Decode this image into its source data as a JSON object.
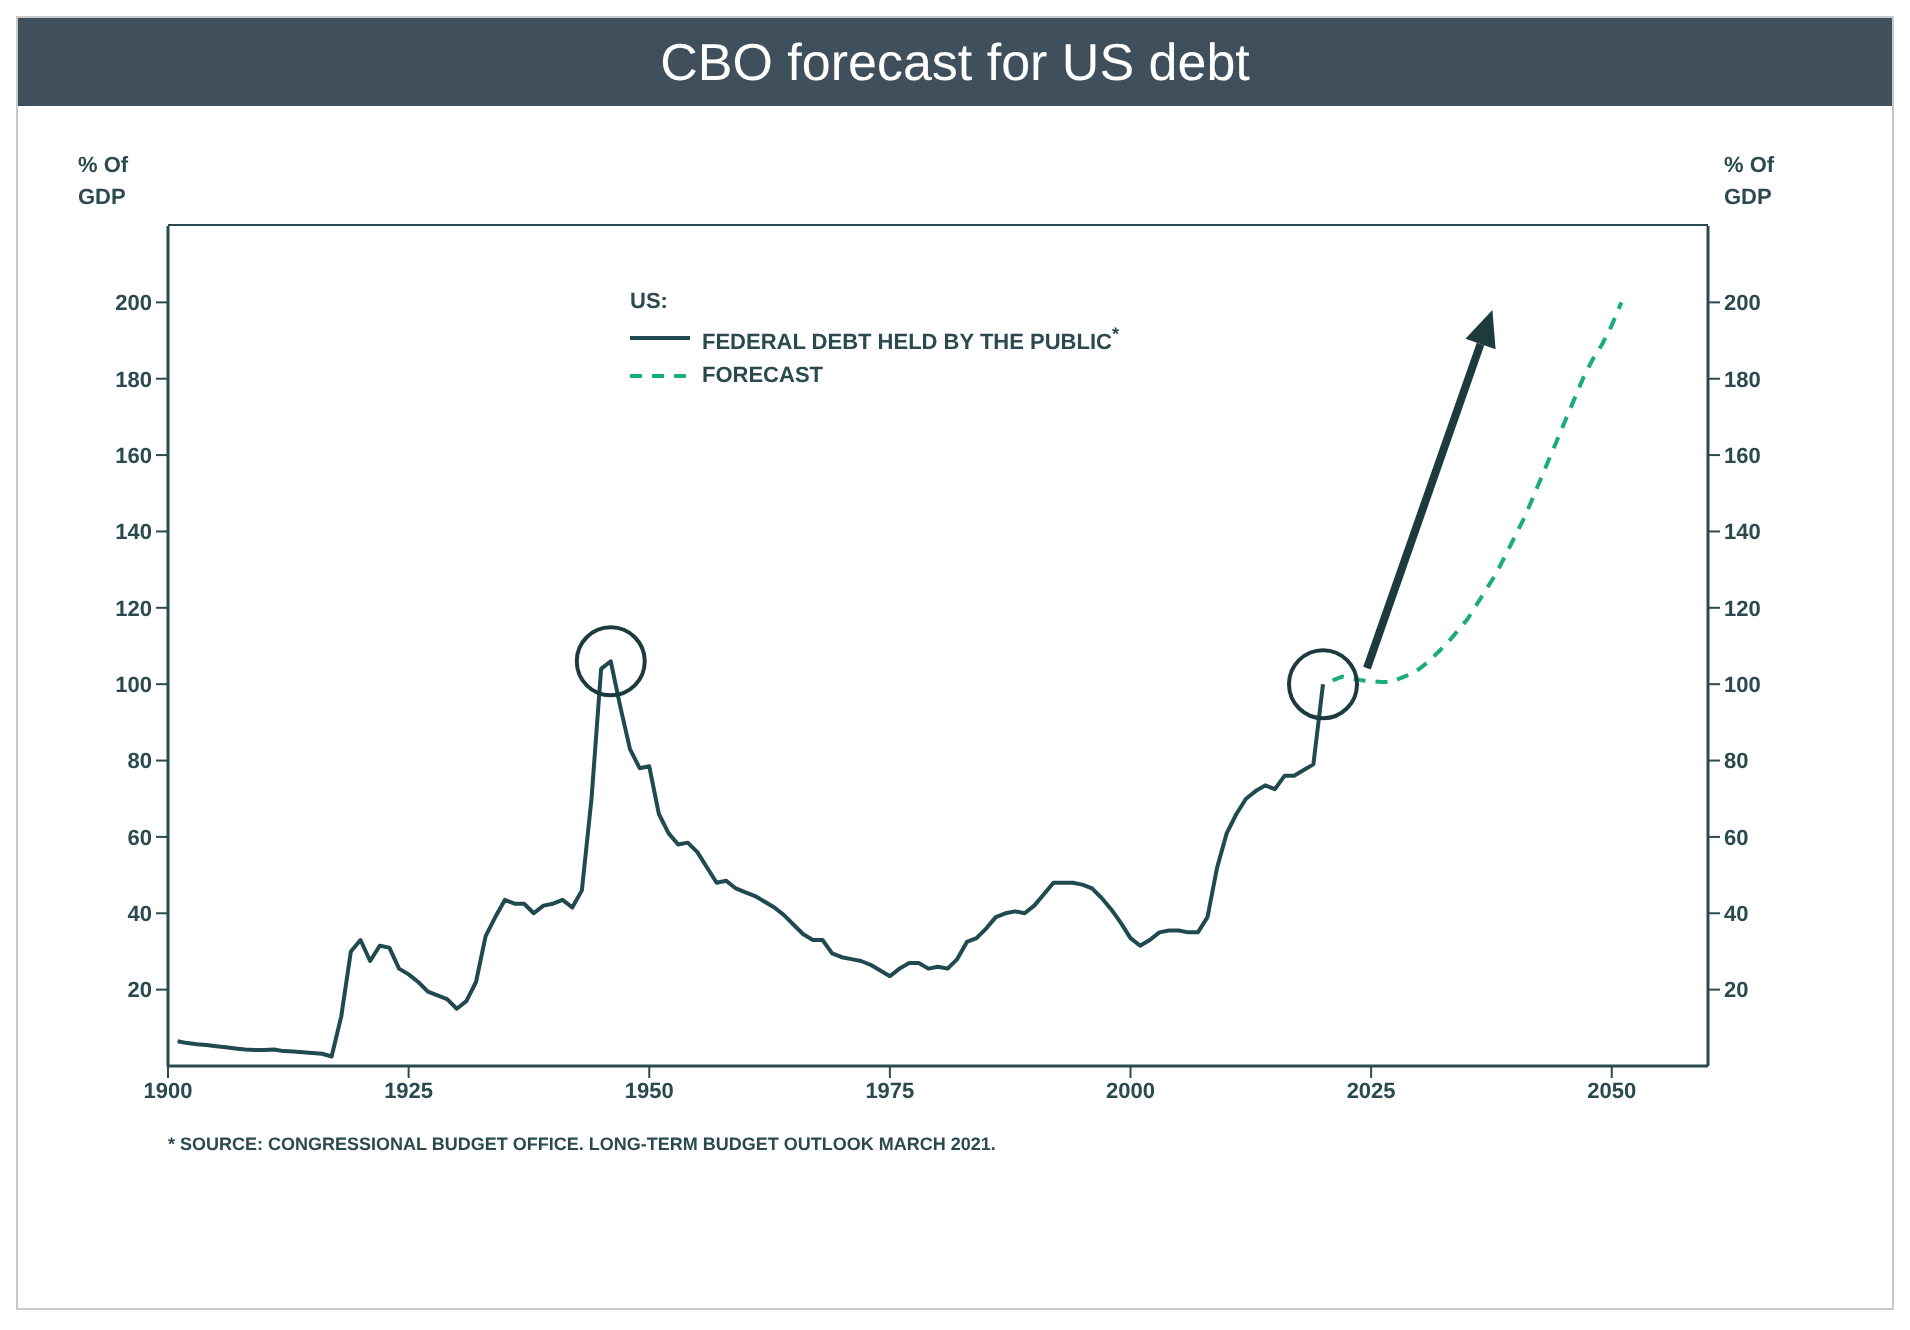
{
  "chart_data": {
    "type": "line",
    "title": "CBO forecast for US debt",
    "ylabel": "% Of GDP",
    "y2label": "% Of GDP",
    "legend_title": "US:",
    "annotations": [
      "* SOURCE: CONGRESSIONAL BUDGET OFFICE. LONG-TERM BUDGET OUTLOOK MARCH 2021."
    ],
    "xlim": [
      1900,
      2060
    ],
    "xticks": [
      1900,
      1925,
      1950,
      1975,
      2000,
      2025,
      2050
    ],
    "ylim": [
      0,
      220
    ],
    "yticks": [
      20,
      40,
      60,
      80,
      100,
      120,
      140,
      160,
      180,
      200
    ],
    "y2lim": [
      0,
      220
    ],
    "y2ticks": [
      20,
      40,
      60,
      80,
      100,
      120,
      140,
      160,
      180,
      200
    ],
    "legend": "top left",
    "marker": "none",
    "series": [
      {
        "name": "FEDERAL DEBT HELD BY THE PUBLIC$^{*}$",
        "color": "#1f4a4f",
        "line_style": "solid",
        "x": [
          1901,
          1902,
          1903,
          1904,
          1905,
          1906,
          1907,
          1908,
          1909,
          1910,
          1911,
          1912,
          1913,
          1914,
          1915,
          1916,
          1917,
          1918,
          1919,
          1920,
          1921,
          1922,
          1923,
          1924,
          1925,
          1926,
          1927,
          1928,
          1929,
          1930,
          1931,
          1932,
          1933,
          1934,
          1935,
          1936,
          1937,
          1938,
          1939,
          1940,
          1941,
          1942,
          1943,
          1944,
          1945,
          1946,
          1947,
          1948,
          1949,
          1950,
          1951,
          1952,
          1953,
          1954,
          1955,
          1956,
          1957,
          1958,
          1959,
          1960,
          1961,
          1962,
          1963,
          1964,
          1965,
          1966,
          1967,
          1968,
          1969,
          1970,
          1971,
          1972,
          1973,
          1974,
          1975,
          1976,
          1977,
          1978,
          1979,
          1980,
          1981,
          1982,
          1983,
          1984,
          1985,
          1986,
          1987,
          1988,
          1989,
          1990,
          1991,
          1992,
          1993,
          1994,
          1995,
          1996,
          1997,
          1998,
          1999,
          2000,
          2001,
          2002,
          2003,
          2004,
          2005,
          2006,
          2007,
          2008,
          2009,
          2010,
          2011,
          2012,
          2013,
          2014,
          2015,
          2016,
          2017,
          2018,
          2019,
          2020
        ],
        "values": [
          6.5,
          6,
          5.7,
          5.5,
          5.2,
          4.9,
          4.6,
          4.3,
          4.2,
          4.2,
          4.3,
          3.9,
          3.8,
          3.6,
          3.4,
          3.2,
          2.5,
          13,
          30,
          33,
          27.5,
          31.5,
          31,
          25.5,
          24,
          22,
          19.5,
          18.5,
          17.5,
          15,
          17,
          22,
          34,
          39,
          43.5,
          42.5,
          42.5,
          40,
          42,
          42.5,
          43.5,
          41.5,
          46,
          70,
          104,
          106,
          94,
          83,
          78,
          78.5,
          66,
          61,
          58,
          58.5,
          56,
          52,
          48,
          48.5,
          46.5,
          45.5,
          44.5,
          43,
          41.5,
          39.5,
          37,
          34.5,
          33,
          33,
          29.5,
          28.5,
          28,
          27.5,
          26.5,
          25,
          23.5,
          25.5,
          27,
          27,
          25.5,
          26,
          25.5,
          28,
          32.5,
          33.5,
          36,
          39,
          40,
          40.5,
          40,
          42,
          45,
          48,
          48,
          48,
          47.5,
          46.5,
          44,
          41,
          37.5,
          33.5,
          31.5,
          33,
          35,
          35.5,
          35.5,
          35,
          35,
          39,
          52,
          61,
          66,
          70,
          72,
          73.5,
          72.5,
          76,
          76,
          77.5,
          79,
          100
        ]
      },
      {
        "name": "FORECAST",
        "color": "#1aab7e",
        "line_style": "dashed",
        "x": [
          2021,
          2022,
          2023,
          2024,
          2025,
          2026,
          2027,
          2028,
          2029,
          2030,
          2031,
          2032,
          2033,
          2034,
          2035,
          2036,
          2037,
          2038,
          2039,
          2040,
          2041,
          2042,
          2043,
          2044,
          2045,
          2046,
          2047,
          2048,
          2049,
          2050,
          2051
        ],
        "values": [
          101,
          102,
          101.5,
          101,
          100.8,
          100.6,
          100.6,
          101.5,
          102.5,
          104,
          106,
          108.5,
          111,
          114,
          117,
          121,
          125,
          129,
          134,
          139,
          144,
          150,
          156,
          162,
          168,
          174,
          180,
          185,
          189,
          194,
          200
        ]
      }
    ]
  }
}
